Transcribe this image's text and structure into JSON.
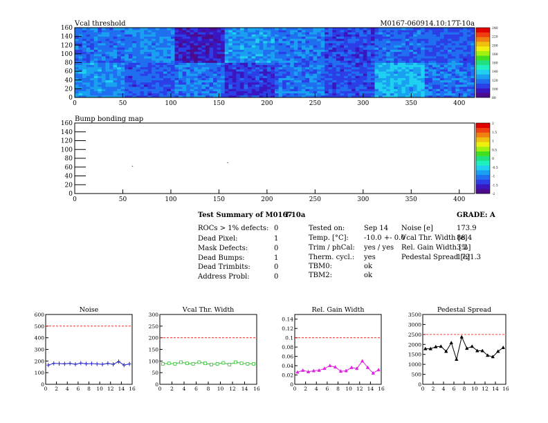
{
  "chart_data": [
    {
      "type": "heatmap",
      "title": "Vcal threshold",
      "label_right": "M0167-060914.10:17T-10a",
      "xlim": [
        0,
        416
      ],
      "ylim": [
        0,
        160
      ],
      "xticks": [
        "0",
        "50",
        "100",
        "150",
        "200",
        "250",
        "300",
        "350",
        "400"
      ],
      "yticks": [
        "0",
        "20",
        "40",
        "60",
        "80",
        "100",
        "120",
        "140",
        "160"
      ],
      "colorbar": {
        "min": 80,
        "max": 240,
        "labels": [
          "80",
          "100",
          "120",
          "140",
          "160",
          "180",
          "200",
          "220",
          "240"
        ]
      },
      "roc_values_top": [
        118,
        122,
        96,
        126,
        120,
        108,
        116,
        112
      ],
      "roc_values_bottom": [
        124,
        112,
        120,
        104,
        118,
        110,
        132,
        118
      ]
    },
    {
      "type": "heatmap",
      "title": "Bump bonding map",
      "xlim": [
        0,
        416
      ],
      "ylim": [
        0,
        160
      ],
      "xticks": [
        "0",
        "50",
        "100",
        "150",
        "200",
        "250",
        "300",
        "350",
        "400"
      ],
      "yticks": [
        "0",
        "20",
        "40",
        "60",
        "80",
        "100",
        "120",
        "140",
        "160"
      ],
      "colorbar": {
        "min": -2,
        "max": 2,
        "labels": [
          "-2",
          "-1.5",
          "-1",
          "-0.5",
          "0",
          "0.5",
          "1",
          "1.5",
          "2"
        ]
      },
      "points": [
        {
          "x": 60,
          "y": 62
        },
        {
          "x": 159,
          "y": 70
        }
      ]
    },
    {
      "type": "line",
      "title": "Noise",
      "xlim": [
        0,
        16
      ],
      "ylim": [
        0,
        600
      ],
      "xticks": [
        "0",
        "2",
        "4",
        "6",
        "8",
        "10",
        "12",
        "14",
        "16"
      ],
      "yticks": [
        "0",
        "100",
        "200",
        "300",
        "400",
        "500",
        "600"
      ],
      "limit": 500,
      "color": "#2020d0",
      "marker": "cross",
      "x": [
        0.5,
        1.5,
        2.5,
        3.5,
        4.5,
        5.5,
        6.5,
        7.5,
        8.5,
        9.5,
        10.5,
        11.5,
        12.5,
        13.5,
        14.5,
        15.5
      ],
      "values": [
        165,
        180,
        178,
        176,
        180,
        172,
        182,
        176,
        178,
        175,
        172,
        180,
        172,
        195,
        165,
        175
      ]
    },
    {
      "type": "line",
      "title": "Vcal Thr. Width",
      "xlim": [
        0,
        16
      ],
      "ylim": [
        0,
        300
      ],
      "xticks": [
        "0",
        "2",
        "4",
        "6",
        "8",
        "10",
        "12",
        "14",
        "16"
      ],
      "yticks": [
        "0",
        "50",
        "100",
        "150",
        "200",
        "250",
        "300"
      ],
      "limit": 200,
      "color": "#30c030",
      "marker": "square",
      "x": [
        0.5,
        1.5,
        2.5,
        3.5,
        4.5,
        5.5,
        6.5,
        7.5,
        8.5,
        9.5,
        10.5,
        11.5,
        12.5,
        13.5,
        14.5,
        15.5
      ],
      "values": [
        88,
        90,
        88,
        95,
        90,
        88,
        95,
        90,
        85,
        88,
        92,
        85,
        95,
        90,
        88,
        88
      ]
    },
    {
      "type": "line",
      "title": "Rel. Gain Width",
      "xlim": [
        0,
        16
      ],
      "ylim": [
        0,
        0.15
      ],
      "xticks": [
        "0",
        "2",
        "4",
        "6",
        "8",
        "10",
        "12",
        "14",
        "16"
      ],
      "yticks": [
        "0",
        "0.02",
        "0.04",
        "0.06",
        "0.08",
        "0.1",
        "0.12",
        "0.14"
      ],
      "limit": 0.1,
      "color": "#e020e0",
      "marker": "triangle",
      "x": [
        0.5,
        1.5,
        2.5,
        3.5,
        4.5,
        5.5,
        6.5,
        7.5,
        8.5,
        9.5,
        10.5,
        11.5,
        12.5,
        13.5,
        14.5,
        15.5
      ],
      "values": [
        0.026,
        0.03,
        0.027,
        0.029,
        0.03,
        0.034,
        0.04,
        0.037,
        0.028,
        0.029,
        0.036,
        0.034,
        0.05,
        0.036,
        0.024,
        0.031
      ]
    },
    {
      "type": "line",
      "title": "Pedestal Spread",
      "xlim": [
        0,
        16
      ],
      "ylim": [
        0,
        3500
      ],
      "xticks": [
        "0",
        "2",
        "4",
        "6",
        "8",
        "10",
        "12",
        "14",
        "16"
      ],
      "yticks": [
        "0",
        "500",
        "1000",
        "1500",
        "2000",
        "2500",
        "3000",
        "3500"
      ],
      "limit": 2500,
      "color": "#000000",
      "marker": "triangle",
      "x": [
        0.5,
        1.5,
        2.5,
        3.5,
        4.5,
        5.5,
        6.5,
        7.5,
        8.5,
        9.5,
        10.5,
        11.5,
        12.5,
        13.5,
        14.5,
        15.5
      ],
      "values": [
        1780,
        1780,
        1880,
        1900,
        1650,
        2080,
        1250,
        2370,
        1800,
        1900,
        1680,
        1680,
        1450,
        1380,
        1650,
        1840
      ]
    }
  ],
  "summary": {
    "title_prefix": "Test Summary of M0167",
    "title_suffix": "T-10a",
    "grade_label": "GRADE:",
    "grade_value": "A",
    "defects": [
      {
        "label": "ROCs > 1% defects:",
        "value": "0"
      },
      {
        "label": "Dead Pixel:",
        "value": "1"
      },
      {
        "label": "Mask Defects:",
        "value": "0"
      },
      {
        "label": "Dead Bumps:",
        "value": "1"
      },
      {
        "label": "Dead Trimbits:",
        "value": "0"
      },
      {
        "label": "Address Probl:",
        "value": "0"
      }
    ],
    "conditions": [
      {
        "label": "Tested on:",
        "value": "Sep 14"
      },
      {
        "label": "Temp. [°C]:",
        "value": "-10.0 +- 0.0"
      },
      {
        "label": "Trim / phCal:",
        "value": "yes / yes"
      },
      {
        "label": "Therm. cycl.:",
        "value": "yes"
      },
      {
        "label": "TBM0:",
        "value": "ok"
      },
      {
        "label": "TBM2:",
        "value": "ok"
      }
    ],
    "params": [
      {
        "label": "Noise [e]",
        "value": "173.9"
      },
      {
        "label": "Vcal Thr. Width [e]",
        "value": "88.4"
      },
      {
        "label": "Rel. Gain Width [%]",
        "value": "3.2"
      },
      {
        "label": "Pedestal Spread [e]",
        "value": "1721.3"
      }
    ]
  },
  "colors": {
    "limit_line": "#ff0000"
  }
}
